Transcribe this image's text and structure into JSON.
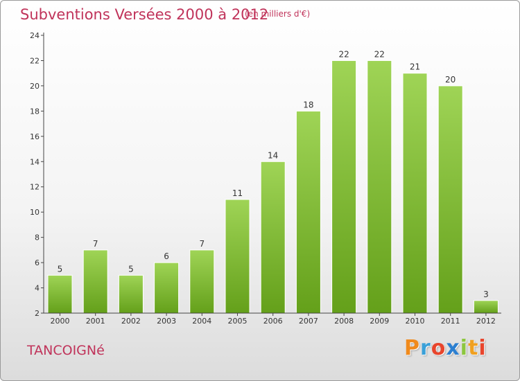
{
  "title": "Subventions Versées 2000 à 2012",
  "subtitle": "(en milliers d'€)",
  "place": "TANCOIGNé",
  "logo": {
    "text": "Proxiti",
    "letters": [
      "P",
      "r",
      "o",
      "x",
      "i",
      "t",
      "i"
    ],
    "colors": [
      "#f08a1c",
      "#3aa0d8",
      "#e8452c",
      "#2c7fd0",
      "#8cc63f",
      "#f0a020",
      "#e8452c"
    ]
  },
  "colors": {
    "bar_light": "#9fd456",
    "bar_dark": "#64a01a",
    "title": "#c0335a",
    "axis": "#444444"
  },
  "chart_data": {
    "type": "bar",
    "title": "Subventions Versées 2000 à 2012",
    "subtitle": "(en milliers d'€)",
    "categories": [
      "2000",
      "2001",
      "2002",
      "2003",
      "2004",
      "2005",
      "2006",
      "2007",
      "2008",
      "2009",
      "2010",
      "2011",
      "2012"
    ],
    "values": [
      5,
      7,
      5,
      6,
      7,
      11,
      14,
      18,
      22,
      22,
      21,
      20,
      3
    ],
    "ylim": [
      2,
      24
    ],
    "yticks": [
      2,
      4,
      6,
      8,
      10,
      12,
      14,
      16,
      18,
      20,
      22,
      24
    ],
    "xlabel": "",
    "ylabel": "",
    "grid": false
  }
}
